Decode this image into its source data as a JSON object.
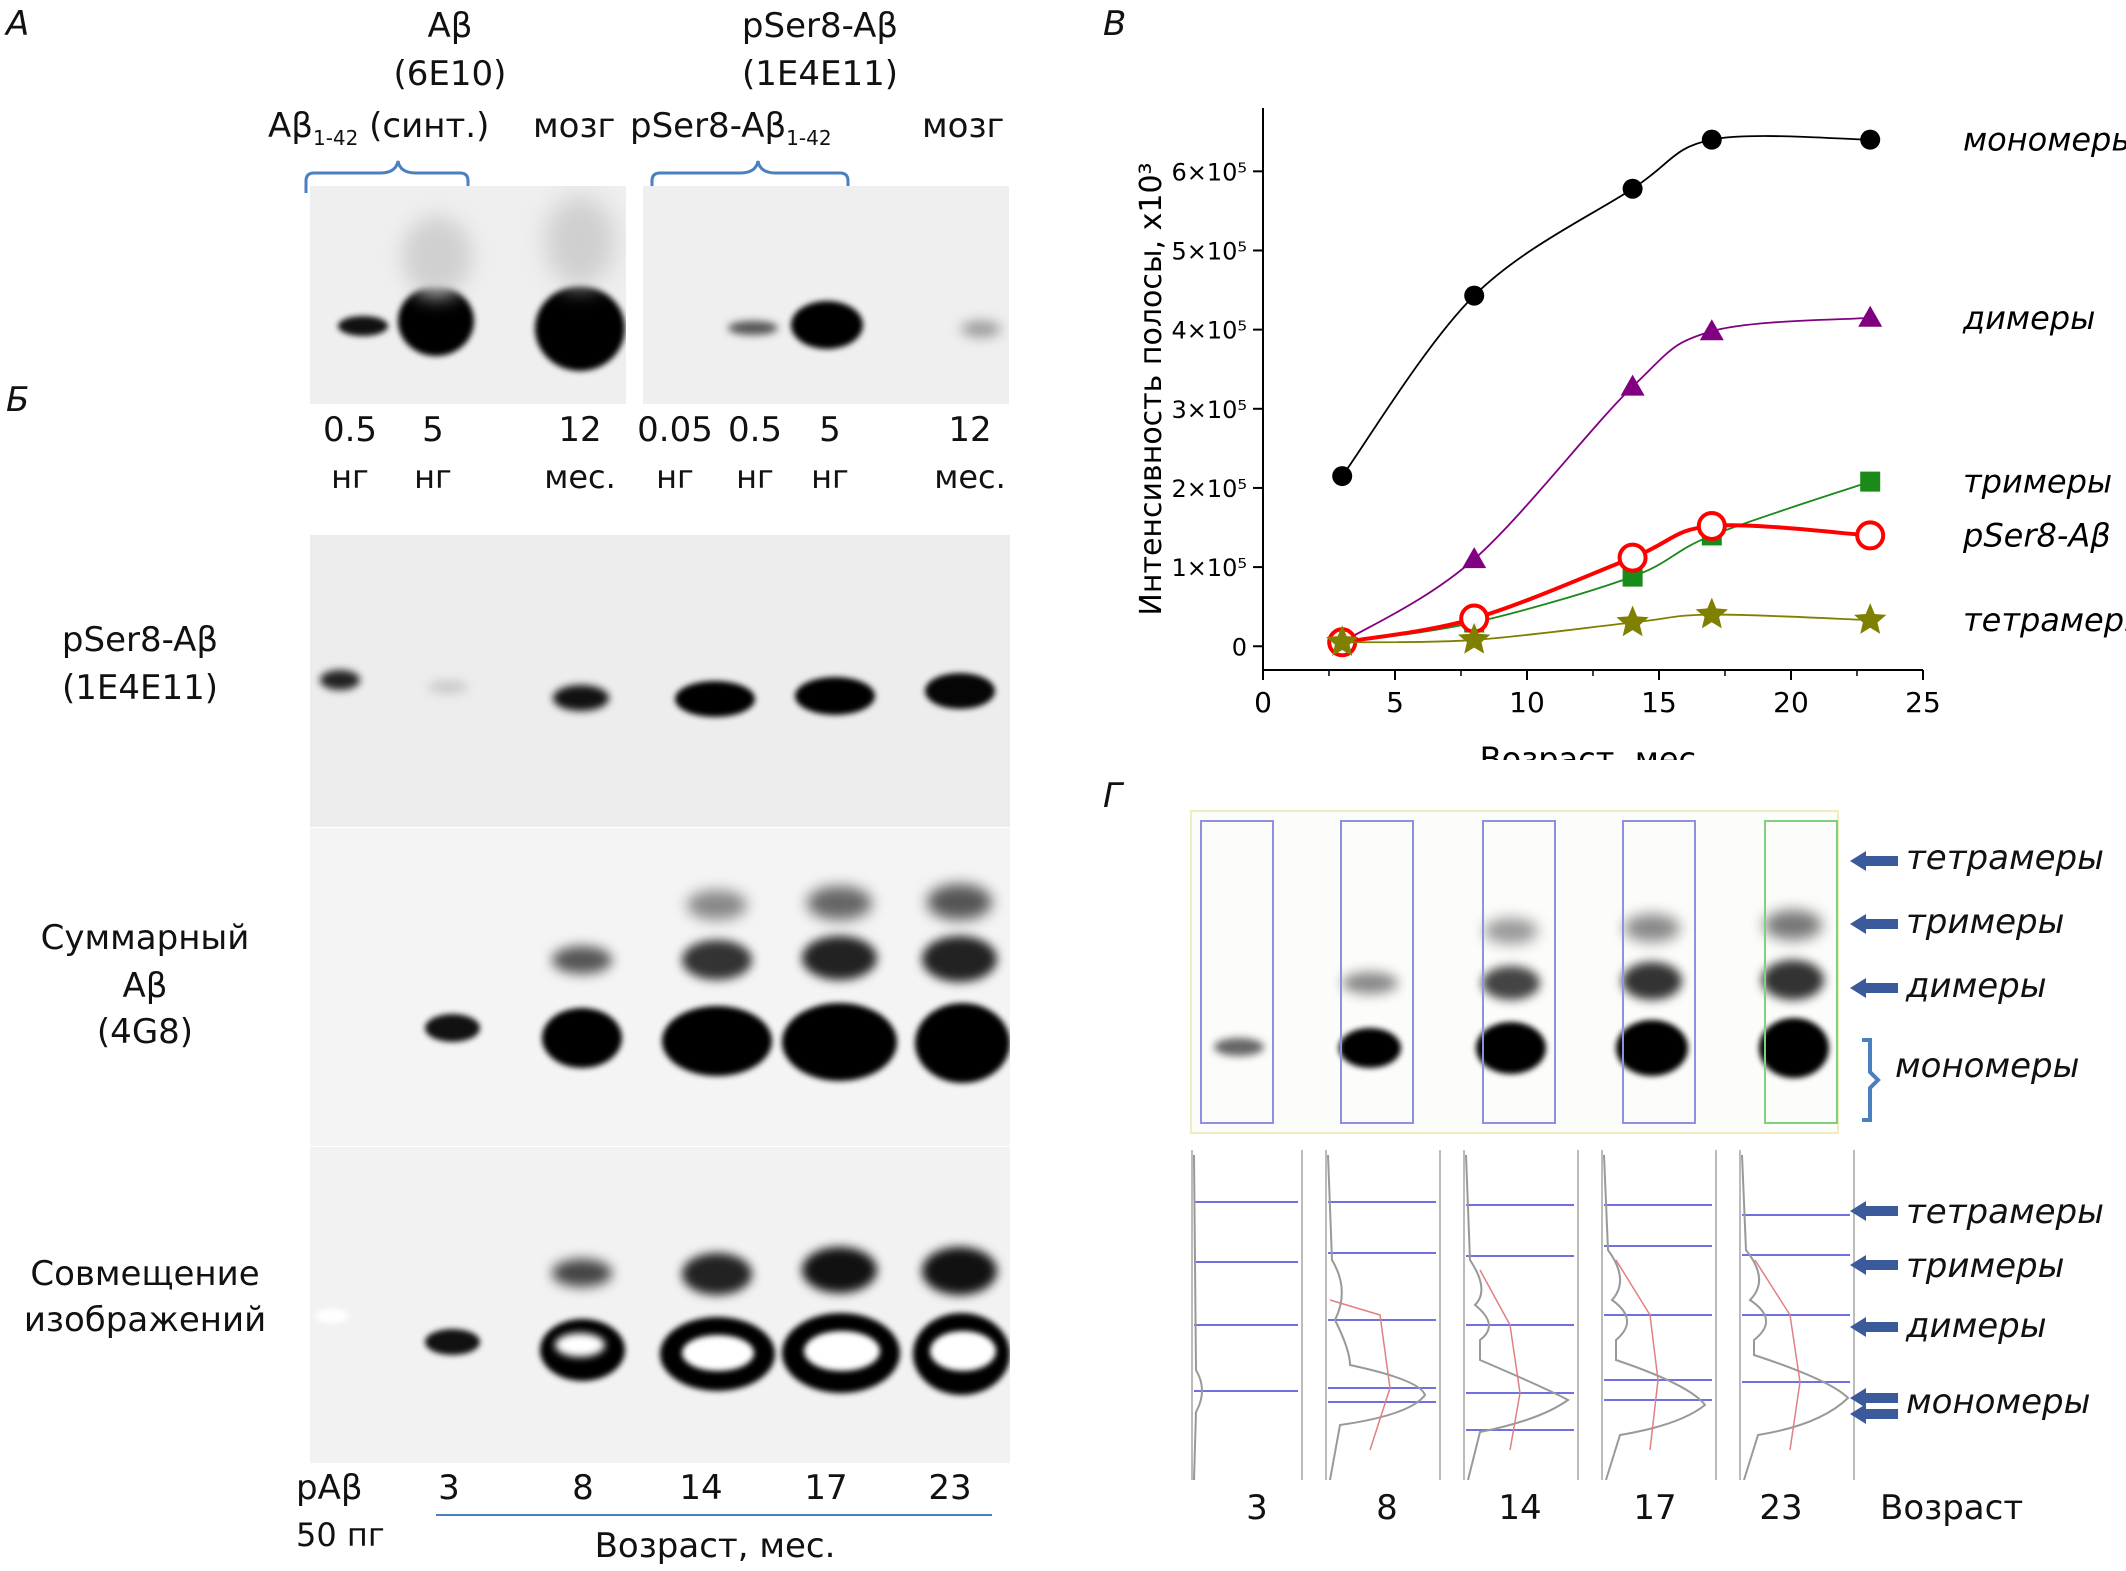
{
  "panels": {
    "a": "А",
    "b": "Б",
    "v": "В",
    "g": "Г"
  },
  "panel_a": {
    "group1_title": "Aβ",
    "group1_antibody": "(6E10)",
    "group1_sample": "Aβ",
    "group1_sample_sub": "1-42",
    "group1_sample_note": "(синт.)",
    "group1_brain": "мозг",
    "group2_title": "pSer8-Aβ",
    "group2_antibody": "(1E4E11)",
    "group2_sample": "pSer8-Aβ",
    "group2_sample_sub": "1-42",
    "group2_brain": "мозг",
    "lanes": [
      {
        "amount": "0.5",
        "unit": "нг"
      },
      {
        "amount": "5",
        "unit": "нг"
      },
      {
        "amount": "12",
        "unit": "мес."
      },
      {
        "amount": "0.05",
        "unit": "нг"
      },
      {
        "amount": "0.5",
        "unit": "нг"
      },
      {
        "amount": "5",
        "unit": "нг"
      },
      {
        "amount": "12",
        "unit": "мес."
      }
    ]
  },
  "panel_b": {
    "row1_label_line1": "pSer8-Aβ",
    "row1_label_line2": "(1E4E11)",
    "row2_label_line1": "Суммарный",
    "row2_label_line2": "Aβ",
    "row2_label_line3": "(4G8)",
    "row3_label_line1": "Совмещение",
    "row3_label_line2": "изображений",
    "control_line1": "pAβ",
    "control_line2": "50 пг",
    "ages": [
      "3",
      "8",
      "14",
      "17",
      "23"
    ],
    "age_axis_label": "Возраст, мес."
  },
  "panel_g": {
    "labels_top": [
      "тетрамеры",
      "тримеры",
      "димеры",
      "мономеры"
    ],
    "labels_bottom": [
      "тетрамеры",
      "тримеры",
      "димеры",
      "мономеры"
    ],
    "ages": [
      "3",
      "8",
      "14",
      "17",
      "23"
    ],
    "age_label": "Возраст"
  },
  "chart_data": {
    "type": "line",
    "xlabel": "Возраст, мес.",
    "ylabel": "Интенсивность полосы, x10³",
    "xlim": [
      0,
      25
    ],
    "ylim": [
      -30000,
      680000
    ],
    "xticks": [
      0,
      5,
      10,
      15,
      20,
      25
    ],
    "yticks": [
      0,
      100000,
      200000,
      300000,
      400000,
      500000,
      600000
    ],
    "ytick_labels": [
      "0",
      "1×10⁵",
      "2×10⁵",
      "3×10⁵",
      "4×10⁵",
      "5×10⁵",
      "6×10⁵"
    ],
    "series": [
      {
        "name": "мономеры",
        "color": "#000000",
        "marker": "circle-filled",
        "x": [
          3,
          8,
          14,
          17,
          23
        ],
        "y": [
          215000,
          443000,
          578000,
          640000,
          640000
        ]
      },
      {
        "name": "димеры",
        "color": "#800080",
        "marker": "triangle",
        "x": [
          3,
          8,
          14,
          17,
          23
        ],
        "y": [
          5000,
          110000,
          328000,
          398000,
          415000
        ]
      },
      {
        "name": "тримеры",
        "color": "#1a8a1a",
        "marker": "square",
        "x": [
          3,
          8,
          14,
          17,
          23
        ],
        "y": [
          5000,
          30000,
          88000,
          140000,
          208000
        ]
      },
      {
        "name": "pSer8-Aβ",
        "color": "#ff0000",
        "marker": "circle-open",
        "x": [
          3,
          8,
          14,
          17,
          23
        ],
        "y": [
          5000,
          35000,
          112000,
          152000,
          140000
        ]
      },
      {
        "name": "тетрамеры",
        "color": "#808000",
        "marker": "star",
        "x": [
          3,
          8,
          14,
          17,
          23
        ],
        "y": [
          5000,
          8000,
          30000,
          40000,
          33000
        ]
      }
    ]
  }
}
